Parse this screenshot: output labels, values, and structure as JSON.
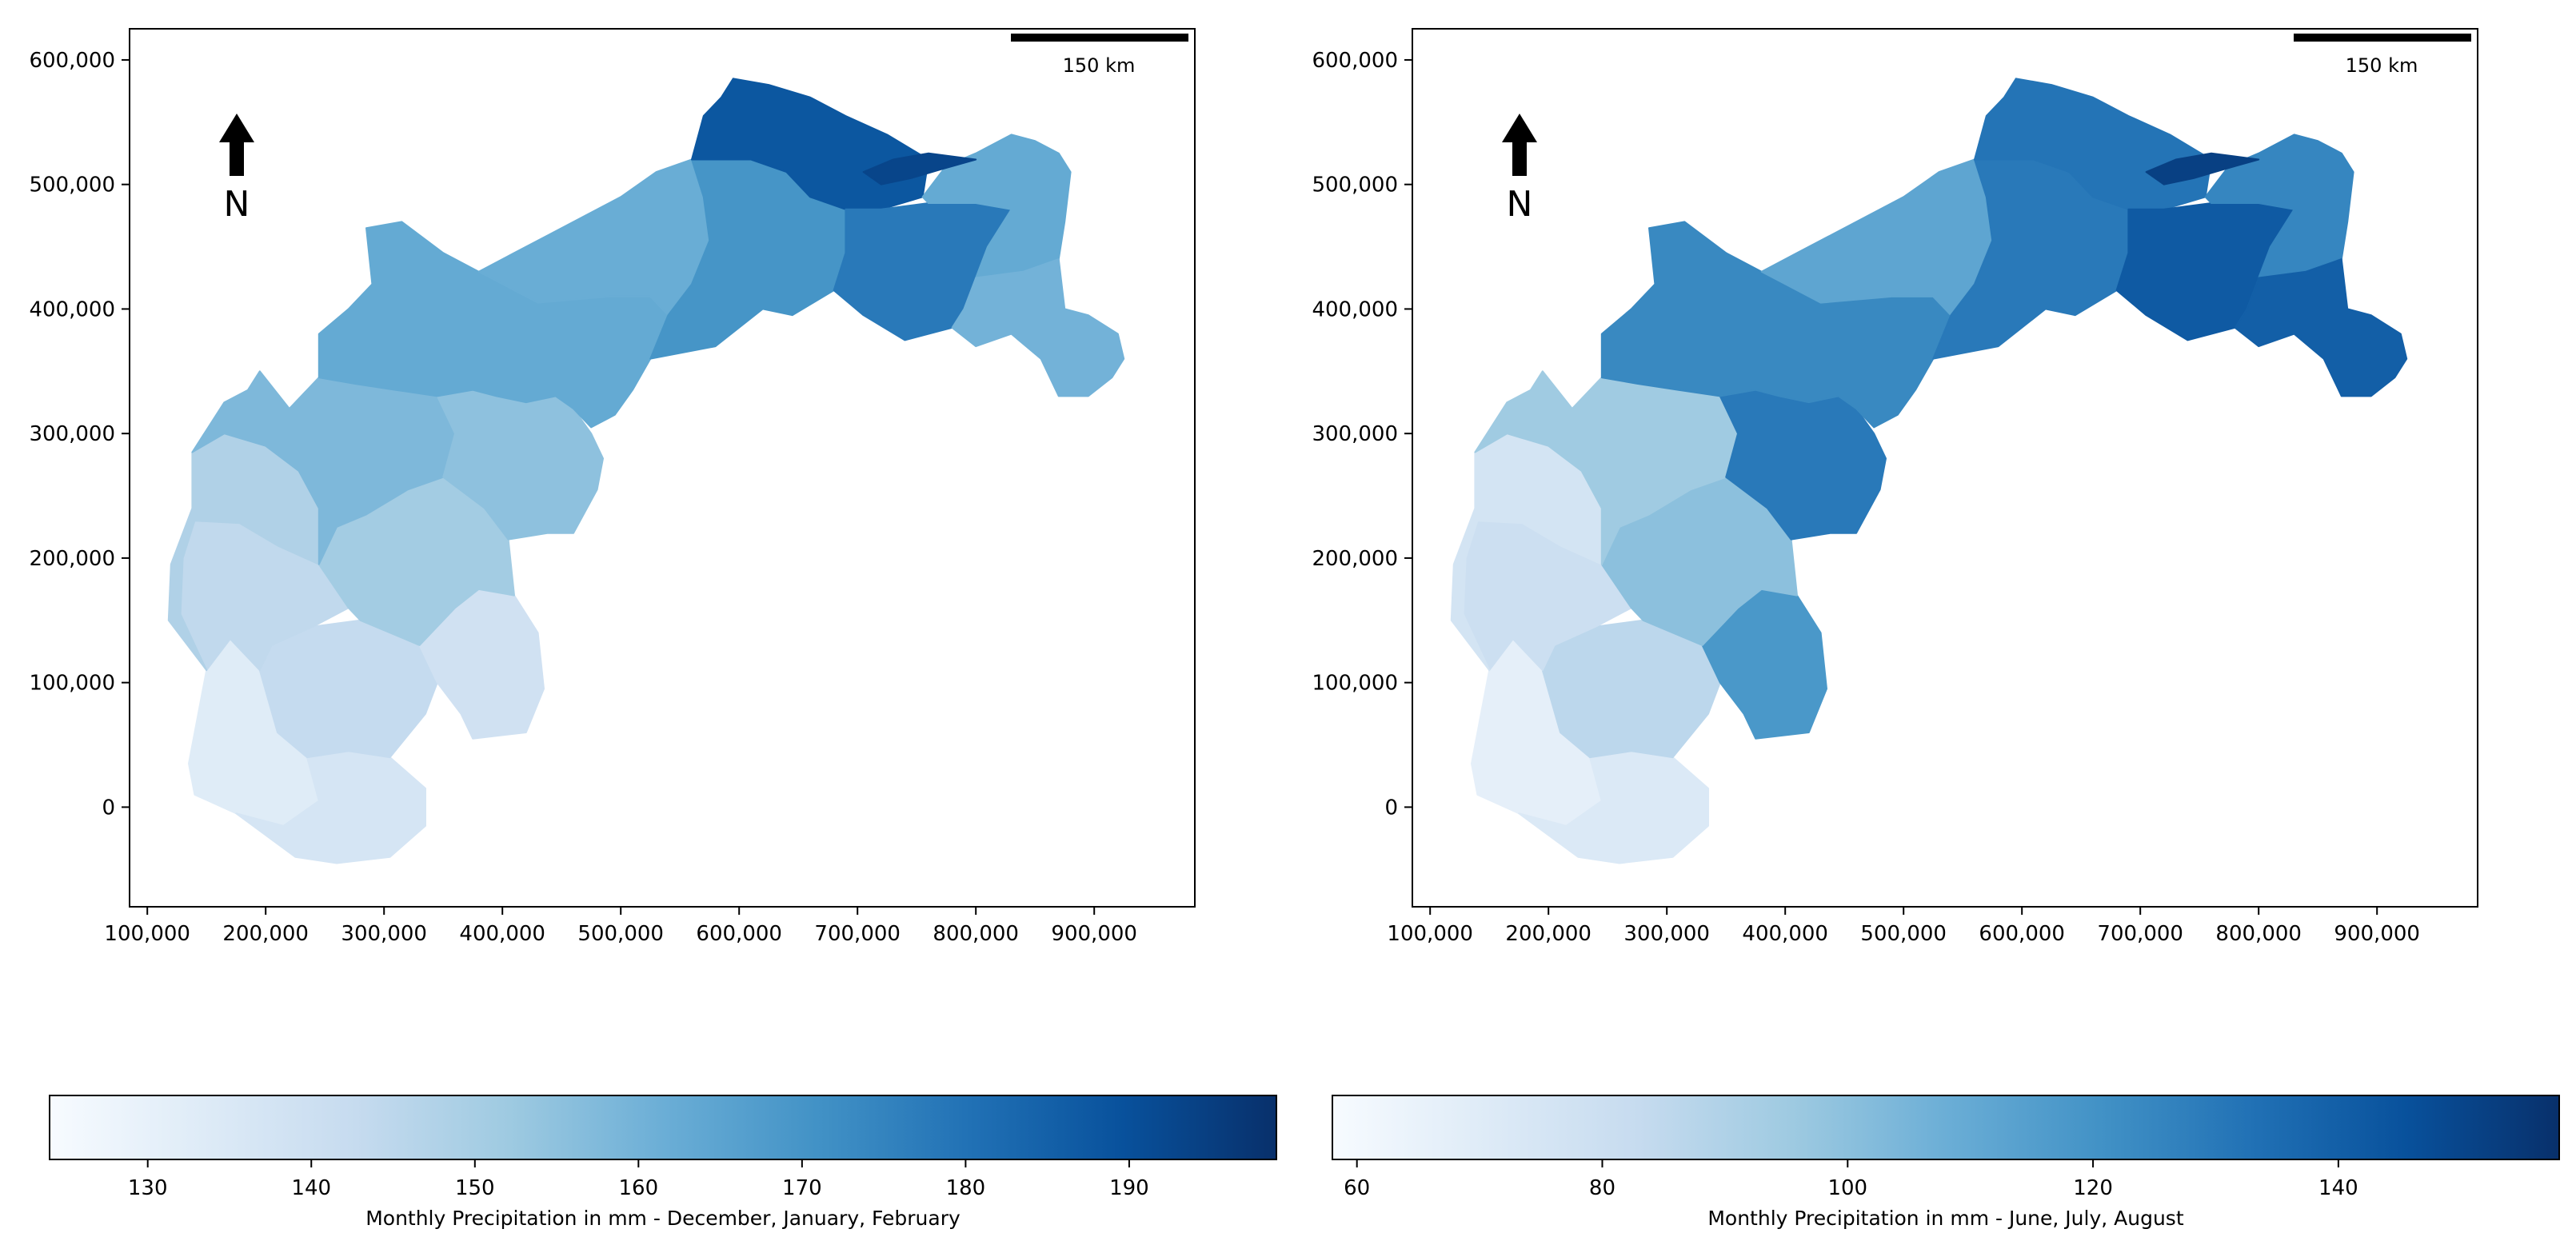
{
  "north_label": "N",
  "scale_label": "150 km",
  "x_ticks": [
    {
      "value": 100000,
      "label": "100,000"
    },
    {
      "value": 200000,
      "label": "200,000"
    },
    {
      "value": 300000,
      "label": "300,000"
    },
    {
      "value": 400000,
      "label": "400,000"
    },
    {
      "value": 500000,
      "label": "500,000"
    },
    {
      "value": 600000,
      "label": "600,000"
    },
    {
      "value": 700000,
      "label": "700,000"
    },
    {
      "value": 800000,
      "label": "800,000"
    },
    {
      "value": 900000,
      "label": "900,000"
    }
  ],
  "y_ticks": [
    {
      "value": 600000,
      "label": "600,000"
    },
    {
      "value": 500000,
      "label": "500,000"
    },
    {
      "value": 400000,
      "label": "400,000"
    },
    {
      "value": 300000,
      "label": "300,000"
    },
    {
      "value": 200000,
      "label": "200,000"
    },
    {
      "value": 100000,
      "label": "100,000"
    },
    {
      "value": 0,
      "label": "0"
    }
  ],
  "colormap": {
    "low": "#f7fbff",
    "mid": "#6baed6",
    "high": "#08306b"
  },
  "chart_data": [
    {
      "type": "choropleth",
      "xlim": [
        85000,
        985000
      ],
      "ylim": [
        -80000,
        625000
      ],
      "colorbar": {
        "label": "Monthly Precipitation in mm - December, January, February",
        "range": [
          124,
          199
        ],
        "ticks": [
          {
            "value": 130,
            "label": "130"
          },
          {
            "value": 140,
            "label": "140"
          },
          {
            "value": 150,
            "label": "150"
          },
          {
            "value": 160,
            "label": "160"
          },
          {
            "value": 170,
            "label": "170"
          },
          {
            "value": 180,
            "label": "180"
          },
          {
            "value": 190,
            "label": "190"
          }
        ]
      },
      "regions": {
        "south_west": 133,
        "south_lower": 137,
        "south_central": 143,
        "south_east": 139,
        "west_central": 144,
        "central": 151,
        "west_mid": 148,
        "central_north": 158,
        "arm": 155,
        "centre_north": 163,
        "north_west": 162,
        "north_central": 170,
        "north_peak": 188,
        "north_east_central": 178,
        "north_east": 163,
        "east_tail": 160,
        "inner_hotspot": 193
      }
    },
    {
      "type": "choropleth",
      "xlim": [
        85000,
        985000
      ],
      "ylim": [
        -80000,
        625000
      ],
      "colorbar": {
        "label": "Monthly Precipitation in mm - June, July, August",
        "range": [
          58,
          158
        ],
        "ticks": [
          {
            "value": 60,
            "label": "60"
          },
          {
            "value": 80,
            "label": "80"
          },
          {
            "value": 100,
            "label": "100"
          },
          {
            "value": 120,
            "label": "120"
          },
          {
            "value": 140,
            "label": "140"
          }
        ]
      },
      "regions": {
        "south_west": 67,
        "south_lower": 72,
        "south_central": 86,
        "south_east": 118,
        "west_central": 80,
        "central": 100,
        "west_mid": 76,
        "central_north": 95,
        "arm": 130,
        "centre_north": 124,
        "north_west": 112,
        "north_central": 130,
        "north_peak": 132,
        "north_east_central": 142,
        "north_east": 125,
        "east_tail": 140,
        "inner_hotspot": 152
      }
    }
  ]
}
